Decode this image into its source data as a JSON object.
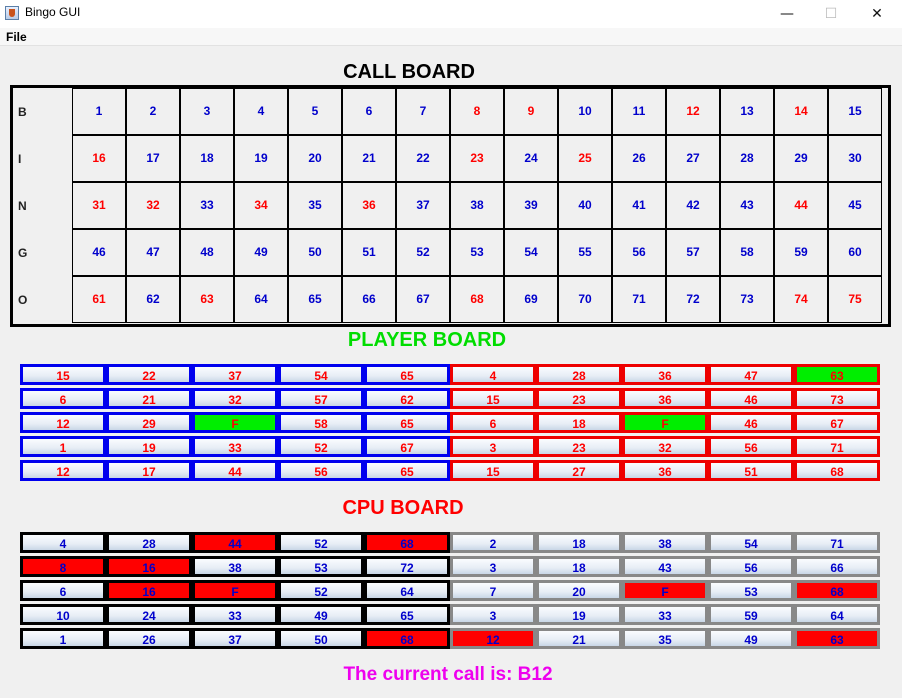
{
  "window": {
    "title": "Bingo GUI",
    "minimize": "—",
    "maximize": "☐",
    "close": "✕"
  },
  "menu": {
    "file": "File"
  },
  "call_board": {
    "title": "CALL BOARD",
    "letters": [
      "B",
      "I",
      "N",
      "G",
      "O"
    ],
    "called_color": "#ff0000",
    "uncalled_color": "#0000cc",
    "called": [
      8,
      9,
      12,
      14,
      16,
      23,
      25,
      31,
      32,
      34,
      36,
      44,
      61,
      63,
      68,
      74,
      75
    ]
  },
  "player_board": {
    "title": "PLAYER BOARD",
    "text_color": "#ff0000",
    "left_card": {
      "border_color": "#0000ee",
      "rows": [
        [
          "15",
          "22",
          "37",
          "54",
          "65"
        ],
        [
          "6",
          "21",
          "32",
          "57",
          "62"
        ],
        [
          "12",
          "29",
          "F",
          "58",
          "65"
        ],
        [
          "1",
          "19",
          "33",
          "52",
          "67"
        ],
        [
          "12",
          "17",
          "44",
          "56",
          "65"
        ]
      ],
      "marked": [
        [
          2,
          2
        ]
      ]
    },
    "right_card": {
      "border_color": "#ee0000",
      "rows": [
        [
          "4",
          "28",
          "36",
          "47",
          "63"
        ],
        [
          "15",
          "23",
          "36",
          "46",
          "73"
        ],
        [
          "6",
          "18",
          "F",
          "46",
          "67"
        ],
        [
          "3",
          "23",
          "32",
          "56",
          "71"
        ],
        [
          "15",
          "27",
          "36",
          "51",
          "68"
        ]
      ],
      "marked": [
        [
          0,
          4
        ],
        [
          2,
          2
        ]
      ]
    }
  },
  "cpu_board": {
    "title": "CPU BOARD",
    "text_color": "#0000cc",
    "left_card": {
      "border_color": "#000000",
      "rows": [
        [
          "4",
          "28",
          "44",
          "52",
          "68"
        ],
        [
          "8",
          "16",
          "38",
          "53",
          "72"
        ],
        [
          "6",
          "16",
          "F",
          "52",
          "64"
        ],
        [
          "10",
          "24",
          "33",
          "49",
          "65"
        ],
        [
          "1",
          "26",
          "37",
          "50",
          "68"
        ]
      ],
      "marked": [
        [
          0,
          2
        ],
        [
          0,
          4
        ],
        [
          1,
          0
        ],
        [
          1,
          1
        ],
        [
          2,
          1
        ],
        [
          2,
          2
        ],
        [
          4,
          4
        ]
      ]
    },
    "right_card": {
      "border_color": "#888888",
      "rows": [
        [
          "2",
          "18",
          "38",
          "54",
          "71"
        ],
        [
          "3",
          "18",
          "43",
          "56",
          "66"
        ],
        [
          "7",
          "20",
          "F",
          "53",
          "68"
        ],
        [
          "3",
          "19",
          "33",
          "59",
          "64"
        ],
        [
          "12",
          "21",
          "35",
          "49",
          "63"
        ]
      ],
      "marked": [
        [
          2,
          2
        ],
        [
          2,
          4
        ],
        [
          4,
          0
        ],
        [
          4,
          4
        ]
      ]
    }
  },
  "status": {
    "current_call": "The current call is: B12"
  }
}
